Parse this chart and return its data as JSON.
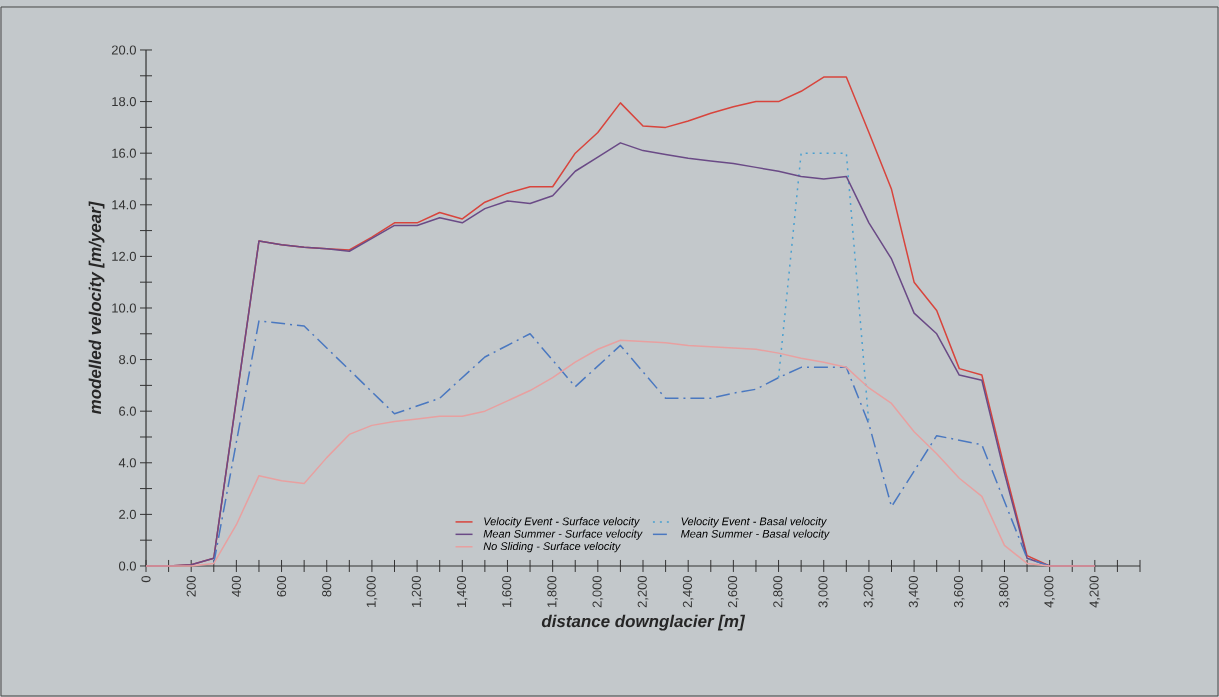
{
  "chart_data": {
    "type": "line",
    "xlabel": "distance downglacier [m]",
    "ylabel": "modelled velocity [m/year]",
    "xlim": [
      0,
      4400
    ],
    "ylim": [
      0,
      20
    ],
    "xticks": [
      0,
      {
        "value": 100,
        "label": null
      },
      200,
      {
        "value": 300,
        "label": null
      },
      400,
      {
        "value": 500,
        "label": null
      },
      600,
      {
        "value": 700,
        "label": null
      },
      800,
      {
        "value": 900,
        "label": null
      },
      {
        "value": 1000,
        "label": "1,000"
      },
      {
        "value": 1100,
        "label": null
      },
      {
        "value": 1200,
        "label": "1,200"
      },
      {
        "value": 1300,
        "label": null
      },
      {
        "value": 1400,
        "label": "1,400"
      },
      {
        "value": 1500,
        "label": null
      },
      {
        "value": 1600,
        "label": "1,600"
      },
      {
        "value": 1700,
        "label": null
      },
      {
        "value": 1800,
        "label": "1,800"
      },
      {
        "value": 1900,
        "label": null
      },
      {
        "value": 2000,
        "label": "2,000"
      },
      {
        "value": 2100,
        "label": null
      },
      {
        "value": 2200,
        "label": "2,200"
      },
      {
        "value": 2300,
        "label": null
      },
      {
        "value": 2400,
        "label": "2,400"
      },
      {
        "value": 2500,
        "label": null
      },
      {
        "value": 2600,
        "label": "2,600"
      },
      {
        "value": 2700,
        "label": null
      },
      {
        "value": 2800,
        "label": "2,800"
      },
      {
        "value": 2900,
        "label": null
      },
      {
        "value": 3000,
        "label": "3,000"
      },
      {
        "value": 3100,
        "label": null
      },
      {
        "value": 3200,
        "label": "3,200"
      },
      {
        "value": 3300,
        "label": null
      },
      {
        "value": 3400,
        "label": "3,400"
      },
      {
        "value": 3500,
        "label": null
      },
      {
        "value": 3600,
        "label": "3,600"
      },
      {
        "value": 3700,
        "label": null
      },
      {
        "value": 3800,
        "label": "3,800"
      },
      {
        "value": 3900,
        "label": null
      },
      {
        "value": 4000,
        "label": "4,000"
      },
      {
        "value": 4100,
        "label": null
      },
      {
        "value": 4200,
        "label": "4,200"
      },
      {
        "value": 4300,
        "label": null
      },
      {
        "value": 4400,
        "label": null
      }
    ],
    "yticks": [
      {
        "value": 0,
        "label": "0.0"
      },
      {
        "value": 1,
        "label": null
      },
      {
        "value": 2,
        "label": "2.0"
      },
      {
        "value": 3,
        "label": null
      },
      {
        "value": 4,
        "label": "4.0"
      },
      {
        "value": 5,
        "label": null
      },
      {
        "value": 6,
        "label": "6.0"
      },
      {
        "value": 7,
        "label": null
      },
      {
        "value": 8,
        "label": "8.0"
      },
      {
        "value": 9,
        "label": null
      },
      {
        "value": 10,
        "label": "10.0"
      },
      {
        "value": 11,
        "label": null
      },
      {
        "value": 12,
        "label": "12.0"
      },
      {
        "value": 13,
        "label": null
      },
      {
        "value": 14,
        "label": "14.0"
      },
      {
        "value": 15,
        "label": null
      },
      {
        "value": 16,
        "label": "16.0"
      },
      {
        "value": 17,
        "label": null
      },
      {
        "value": 18,
        "label": "18.0"
      },
      {
        "value": 19,
        "label": null
      },
      {
        "value": 20,
        "label": "20.0"
      }
    ],
    "grid": false,
    "legend": "bottom",
    "marker": "none",
    "series": [
      {
        "name": "Velocity Event - Surface velocity",
        "color": "#d8443c",
        "line_style": "solid",
        "x": [
          0,
          100,
          200,
          300,
          500,
          600,
          700,
          800,
          900,
          1000,
          1100,
          1200,
          1300,
          1400,
          1500,
          1600,
          1700,
          1800,
          1900,
          2000,
          2100,
          2200,
          2300,
          2400,
          2500,
          2600,
          2700,
          2800,
          2900,
          3000,
          3100,
          3200,
          3300,
          3400,
          3500,
          3600,
          3700,
          3800,
          3900,
          4000,
          4100,
          4200
        ],
        "values": [
          0,
          0,
          0.05,
          0.3,
          12.6,
          12.45,
          12.35,
          12.3,
          12.25,
          12.75,
          13.3,
          13.3,
          13.7,
          13.45,
          14.1,
          14.45,
          14.7,
          14.7,
          16.0,
          16.8,
          17.95,
          17.05,
          17.0,
          17.25,
          17.55,
          17.8,
          18.0,
          18.0,
          18.4,
          18.95,
          18.95,
          16.8,
          14.6,
          11.0,
          9.9,
          7.65,
          7.4,
          3.8,
          0.4,
          0,
          0,
          0
        ]
      },
      {
        "name": "Velocity Event - Basal velocity",
        "color": "#4aa0d0",
        "line_style": "dotted",
        "x": [
          2800,
          2900,
          3000,
          3100,
          3200
        ],
        "values": [
          7.3,
          16.0,
          16.0,
          16.0,
          5.5
        ]
      },
      {
        "name": "Mean Summer - Surface velocity",
        "color": "#6a4a86",
        "line_style": "solid",
        "x": [
          0,
          100,
          200,
          300,
          500,
          600,
          700,
          800,
          900,
          1000,
          1100,
          1200,
          1300,
          1400,
          1500,
          1600,
          1700,
          1800,
          1900,
          2000,
          2100,
          2200,
          2300,
          2400,
          2500,
          2600,
          2700,
          2800,
          2900,
          3000,
          3100,
          3200,
          3300,
          3400,
          3500,
          3600,
          3700,
          3800,
          3900,
          4000,
          4100,
          4200
        ],
        "values": [
          0,
          0,
          0.05,
          0.3,
          12.6,
          12.45,
          12.35,
          12.3,
          12.2,
          12.7,
          13.2,
          13.2,
          13.5,
          13.3,
          13.85,
          14.15,
          14.05,
          14.35,
          15.3,
          15.85,
          16.4,
          16.1,
          15.95,
          15.8,
          15.7,
          15.6,
          15.45,
          15.3,
          15.1,
          15.0,
          15.1,
          13.3,
          11.9,
          9.8,
          9.0,
          7.4,
          7.2,
          3.6,
          0.3,
          0,
          0,
          0
        ]
      },
      {
        "name": "Mean Summer - Basal velocity",
        "color": "#4a78c0",
        "line_style": "dashdot",
        "x": [
          300,
          500,
          700,
          1100,
          1300,
          1500,
          1700,
          1900,
          2100,
          2300,
          2500,
          2600,
          2700,
          2800,
          2900,
          3000,
          3100,
          3200,
          3300,
          3500,
          3700,
          3900,
          4000
        ],
        "values": [
          0.1,
          9.5,
          9.3,
          5.9,
          6.5,
          8.1,
          9.0,
          6.95,
          8.55,
          6.5,
          6.5,
          6.7,
          6.85,
          7.3,
          7.7,
          7.7,
          7.7,
          5.5,
          2.3,
          5.05,
          4.7,
          0.3,
          0
        ]
      },
      {
        "name": "No Sliding - Surface velocity",
        "color": "#e8a0a0",
        "line_style": "solid",
        "x": [
          0,
          100,
          200,
          300,
          400,
          500,
          600,
          700,
          800,
          900,
          1000,
          1100,
          1200,
          1300,
          1400,
          1500,
          1600,
          1700,
          1800,
          1900,
          2000,
          2100,
          2200,
          2300,
          2400,
          2500,
          2600,
          2700,
          2800,
          2900,
          3000,
          3100,
          3200,
          3300,
          3400,
          3500,
          3600,
          3700,
          3800,
          3900,
          4000,
          4100,
          4200
        ],
        "values": [
          0,
          0,
          0,
          0.1,
          1.6,
          3.5,
          3.3,
          3.2,
          4.2,
          5.1,
          5.45,
          5.6,
          5.7,
          5.8,
          5.8,
          6.0,
          6.4,
          6.8,
          7.3,
          7.9,
          8.4,
          8.75,
          8.7,
          8.65,
          8.55,
          8.5,
          8.45,
          8.4,
          8.25,
          8.05,
          7.9,
          7.7,
          6.9,
          6.3,
          5.2,
          4.35,
          3.4,
          2.7,
          0.8,
          0.1,
          0,
          0,
          0
        ]
      }
    ]
  }
}
